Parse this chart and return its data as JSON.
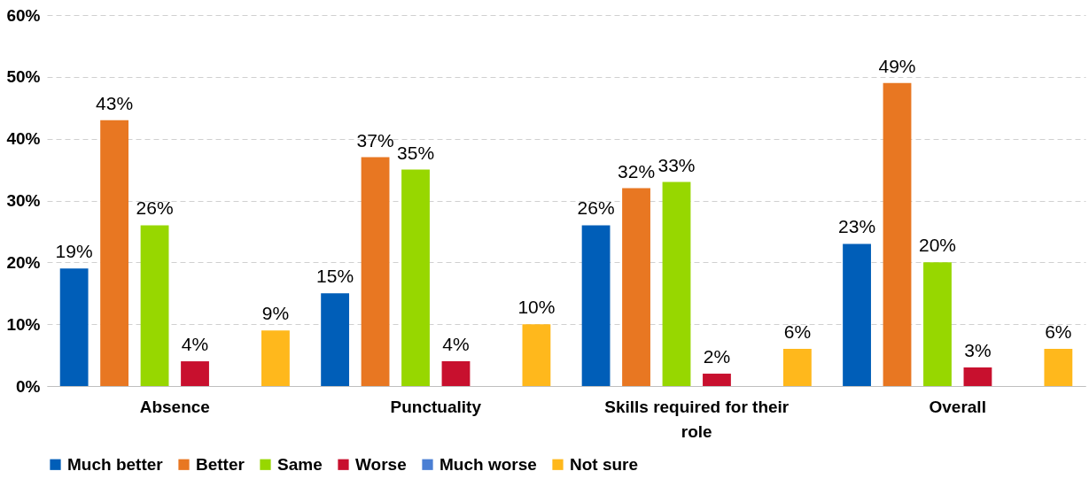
{
  "chart_data": {
    "type": "bar",
    "categories": [
      "Absence",
      "Punctuality",
      "Skills required for their role",
      "Overall"
    ],
    "series": [
      {
        "name": "Much better",
        "color": "#005eb8",
        "values": [
          19,
          15,
          26,
          23
        ],
        "value_labels": [
          "19%",
          "15%",
          "26%",
          "23%"
        ]
      },
      {
        "name": "Better",
        "color": "#e87722",
        "values": [
          43,
          37,
          32,
          49
        ],
        "value_labels": [
          "43%",
          "37%",
          "32%",
          "49%"
        ]
      },
      {
        "name": "Same",
        "color": "#97d700",
        "values": [
          26,
          35,
          33,
          20
        ],
        "value_labels": [
          "26%",
          "35%",
          "33%",
          "20%"
        ]
      },
      {
        "name": "Worse",
        "color": "#c8102e",
        "values": [
          4,
          4,
          2,
          3
        ],
        "value_labels": [
          "4%",
          "4%",
          "2%",
          "3%"
        ]
      },
      {
        "name": "Much worse",
        "color": "#4a7fd4",
        "values": [
          null,
          null,
          null,
          null
        ]
      },
      {
        "name": "Not sure",
        "color": "#ffb81c",
        "values": [
          9,
          10,
          6,
          6
        ],
        "value_labels": [
          "9%",
          "10%",
          "6%",
          "6%"
        ]
      }
    ],
    "ylim": [
      0,
      60
    ],
    "yticks": [
      {
        "value": 0,
        "label": "0%"
      },
      {
        "value": 10,
        "label": "10%"
      },
      {
        "value": 20,
        "label": "20%"
      },
      {
        "value": 30,
        "label": "30%"
      },
      {
        "value": 40,
        "label": "40%"
      },
      {
        "value": 50,
        "label": "50%"
      },
      {
        "value": 60,
        "label": "60%"
      }
    ],
    "grid": "y",
    "legend": "bottom"
  }
}
